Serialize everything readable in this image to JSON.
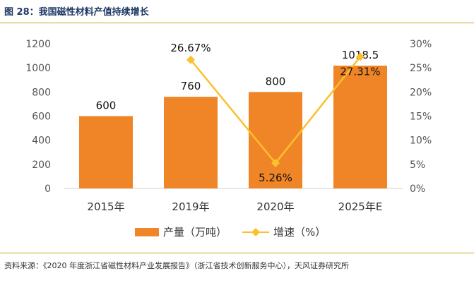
{
  "figure": {
    "title": "图 28：我国磁性材料产值持续增长",
    "source": "资料来源：《2020 年度浙江省磁性材料产业发展报告》（浙江省技术创新服务中心），天风证券研究所"
  },
  "colors": {
    "bar": "#f08527",
    "line": "#fbc02d",
    "title": "#1f3864",
    "rule": "#c9a227"
  },
  "chart_data": {
    "type": "bar",
    "categories": [
      "2015年",
      "2019年",
      "2020年",
      "2025年E"
    ],
    "series": [
      {
        "name": "产量（万吨）",
        "type": "bar",
        "axis": "left",
        "values": [
          600,
          760,
          800,
          1018.5
        ],
        "labels": [
          "600",
          "760",
          "800",
          "1018.5"
        ]
      },
      {
        "name": "增速（%）",
        "type": "line",
        "axis": "right",
        "values": [
          null,
          26.67,
          5.26,
          27.31
        ],
        "labels": [
          "",
          "26.67%",
          "5.26%",
          "27.31%"
        ]
      }
    ],
    "y_left": {
      "ylim": [
        0,
        1200
      ],
      "ticks": [
        "0",
        "200",
        "400",
        "600",
        "800",
        "1000",
        "1200"
      ]
    },
    "y_right": {
      "ylim": [
        0,
        30
      ],
      "ticks": [
        "0%",
        "5%",
        "10%",
        "15%",
        "20%",
        "25%",
        "30%"
      ]
    },
    "grid": false,
    "legend_position": "bottom"
  }
}
